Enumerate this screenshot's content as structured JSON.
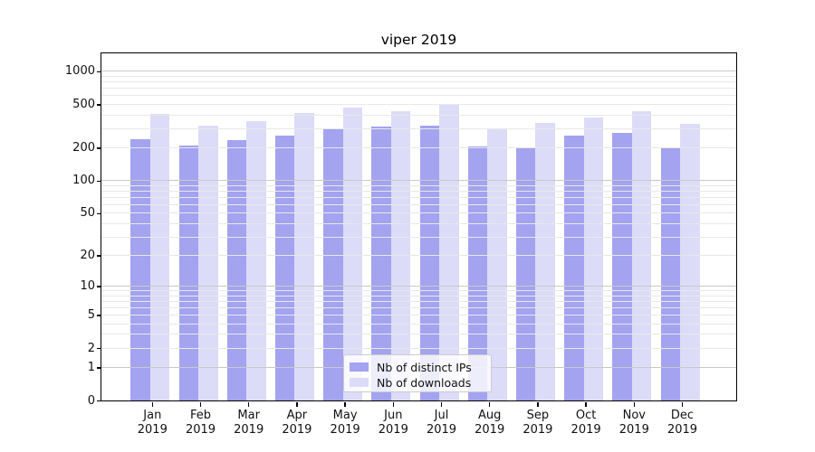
{
  "window": {
    "title": "viper 2019"
  },
  "chart_data": {
    "type": "bar",
    "title": "viper 2019",
    "yscale": "log1p",
    "ylim": [
      0,
      1460
    ],
    "xlabel": "",
    "ylabel": "",
    "grid": true,
    "categories": [
      "Jan 2019",
      "Feb 2019",
      "Mar 2019",
      "Apr 2019",
      "May 2019",
      "Jun 2019",
      "Jul 2019",
      "Aug 2019",
      "Sep 2019",
      "Oct 2019",
      "Nov 2019",
      "Dec 2019"
    ],
    "x_tick_months": [
      "Jan",
      "Feb",
      "Mar",
      "Apr",
      "May",
      "Jun",
      "Jul",
      "Aug",
      "Sep",
      "Oct",
      "Nov",
      "Dec"
    ],
    "x_tick_year": "2019",
    "y_ticks": [
      1000,
      500,
      200,
      100,
      50,
      20,
      10,
      5,
      2,
      1,
      0
    ],
    "series": [
      {
        "name": "Nb of distinct IPs",
        "color": "#a3a3f0",
        "values": [
          240,
          210,
          236,
          260,
          300,
          313,
          320,
          205,
          201,
          257,
          272,
          197
        ]
      },
      {
        "name": "Nb of downloads",
        "color": "#dcdcf8",
        "values": [
          412,
          320,
          348,
          418,
          466,
          432,
          492,
          303,
          335,
          377,
          430,
          333
        ]
      }
    ],
    "legend": {
      "position": "lower center",
      "labels": [
        "Nb of distinct IPs",
        "Nb of downloads"
      ]
    },
    "colors": {
      "bar_ips": "#a3a3f0",
      "bar_downloads": "#dcdcf8",
      "grid_major": "#c9c9c9",
      "grid_minor": "#e8e8e8",
      "spine": "#000000",
      "text": "#111111",
      "legend_bg": "rgba(255,255,255,0.8)",
      "legend_border": "#cccccc"
    }
  }
}
